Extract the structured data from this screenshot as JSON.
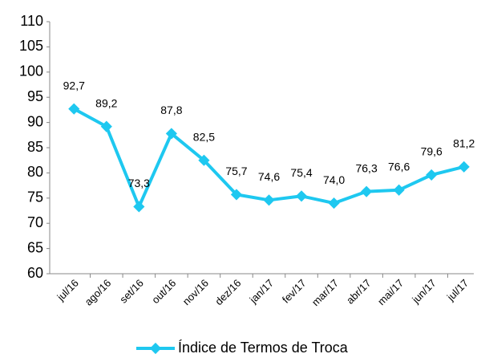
{
  "chart_data": {
    "type": "line",
    "categories": [
      "jul/16",
      "ago/16",
      "set/16",
      "out/16",
      "nov/16",
      "dez/16",
      "jan/17",
      "fev/17",
      "mar/17",
      "abr/17",
      "mai/17",
      "jun/17",
      "jul/17"
    ],
    "series": [
      {
        "name": "Índice de Termos de Troca",
        "color": "#1ec8f0",
        "values": [
          92.7,
          89.2,
          73.3,
          87.8,
          82.5,
          75.7,
          74.6,
          75.4,
          74.0,
          76.3,
          76.6,
          79.6,
          81.2
        ],
        "value_labels": [
          "92,7",
          "89,2",
          "73,3",
          "87,8",
          "82,5",
          "75,7",
          "74,6",
          "75,4",
          "74,0",
          "76,3",
          "76,6",
          "79,6",
          "81,2"
        ]
      }
    ],
    "ylim": [
      60,
      110
    ],
    "yticks": [
      60,
      65,
      70,
      75,
      80,
      85,
      90,
      95,
      100,
      105,
      110
    ],
    "grid": false,
    "legend": "bottom"
  }
}
